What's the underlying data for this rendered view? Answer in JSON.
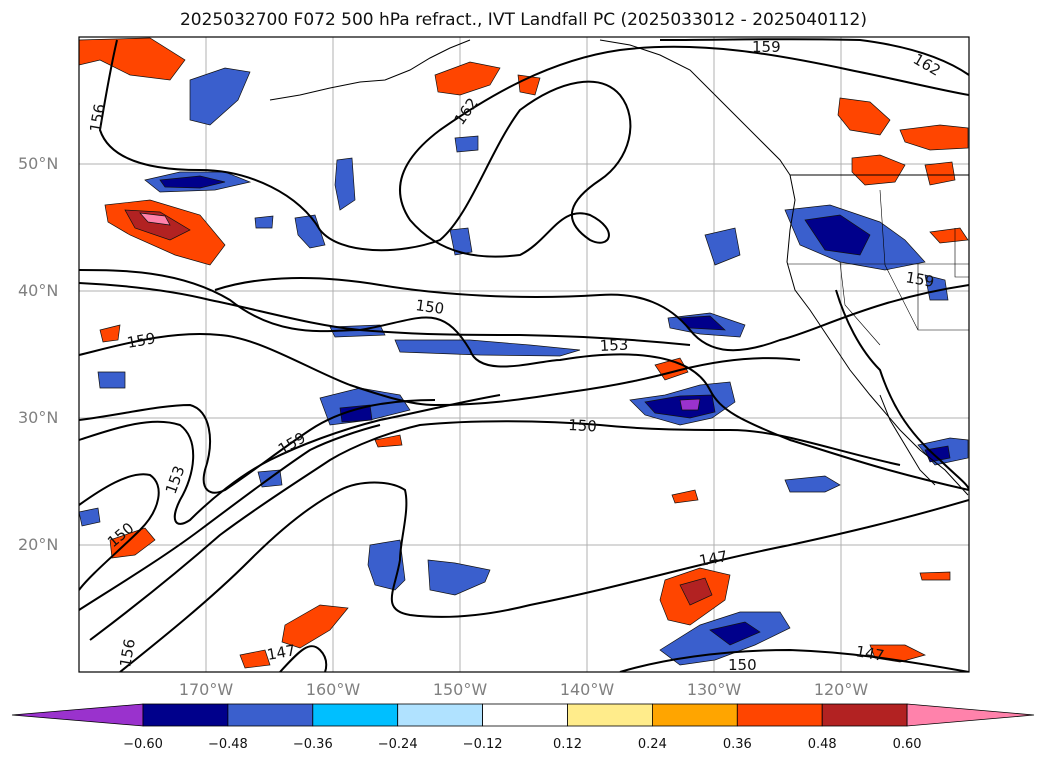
{
  "title": "2025032700 F072 500 hPa refract., IVT Landfall PC (2025033012 - 2025040112)",
  "map": {
    "lat_labels": [
      {
        "text": "50°N",
        "lat": 50
      },
      {
        "text": "40°N",
        "lat": 40
      },
      {
        "text": "30°N",
        "lat": 30
      },
      {
        "text": "20°N",
        "lat": 20
      }
    ],
    "lon_labels": [
      {
        "text": "170°W",
        "lon": -170
      },
      {
        "text": "160°W",
        "lon": -160
      },
      {
        "text": "150°W",
        "lon": -150
      },
      {
        "text": "140°W",
        "lon": -140
      },
      {
        "text": "130°W",
        "lon": -130
      },
      {
        "text": "120°W",
        "lon": -120
      }
    ],
    "contour_labels": [
      "147",
      "150",
      "153",
      "156",
      "159",
      "162"
    ]
  },
  "colorbar": {
    "colors": [
      "#9a32cd",
      "#00008b",
      "#3a5fcd",
      "#00bfff",
      "#b0e2ff",
      "#ffffff",
      "#ffec8b",
      "#ffa500",
      "#ff4500",
      "#b22222",
      "#ff82ab"
    ],
    "ticks": [
      "−0.60",
      "−0.48",
      "−0.36",
      "−0.24",
      "−0.12",
      "0.12",
      "0.24",
      "0.36",
      "0.48",
      "0.60"
    ]
  }
}
